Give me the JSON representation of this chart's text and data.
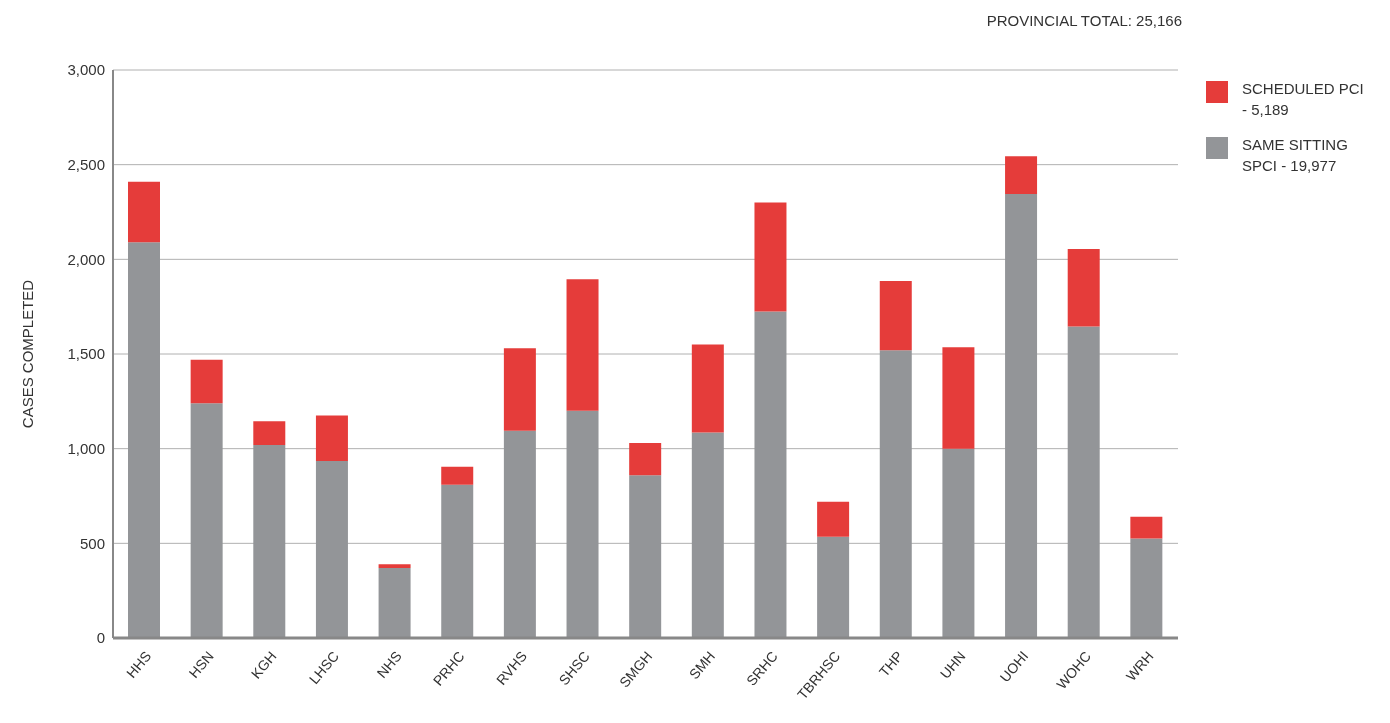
{
  "chart_data": {
    "type": "bar",
    "stacked": true,
    "ylabel": "CASES COMPLETED",
    "annotations": [
      "PROVINCIAL TOTAL: 25,166"
    ],
    "categories": [
      "HHS",
      "HSN",
      "KGH",
      "LHSC",
      "NHS",
      "PRHC",
      "RVHS",
      "SHSC",
      "SMGH",
      "SMH",
      "SRHC",
      "TBRHSC",
      "THP",
      "UHN",
      "UOHI",
      "WOHC",
      "WRH"
    ],
    "series": [
      {
        "name": "SAME SITTING SPCI - 19,977",
        "color": "#939598",
        "values": [
          2090,
          1240,
          1020,
          935,
          370,
          810,
          1095,
          1200,
          860,
          1085,
          1725,
          535,
          1520,
          1000,
          2345,
          1645,
          525
        ]
      },
      {
        "name": "SCHEDULED PCI - 5,189",
        "color": "#e53c3a",
        "values": [
          320,
          230,
          125,
          240,
          20,
          95,
          435,
          695,
          170,
          465,
          575,
          185,
          365,
          535,
          200,
          410,
          115
        ]
      }
    ],
    "ylim": [
      0,
      3000
    ],
    "yticks": [
      0,
      {
        "value": 500,
        "label": "500"
      },
      {
        "value": 1000,
        "label": "1,000"
      },
      {
        "value": 1500,
        "label": "1,500"
      },
      {
        "value": 2000,
        "label": "2,000"
      },
      {
        "value": 2500,
        "label": "2,500"
      },
      {
        "value": 3000,
        "label": "3,000"
      }
    ],
    "grid": "y",
    "legend": "top right"
  }
}
